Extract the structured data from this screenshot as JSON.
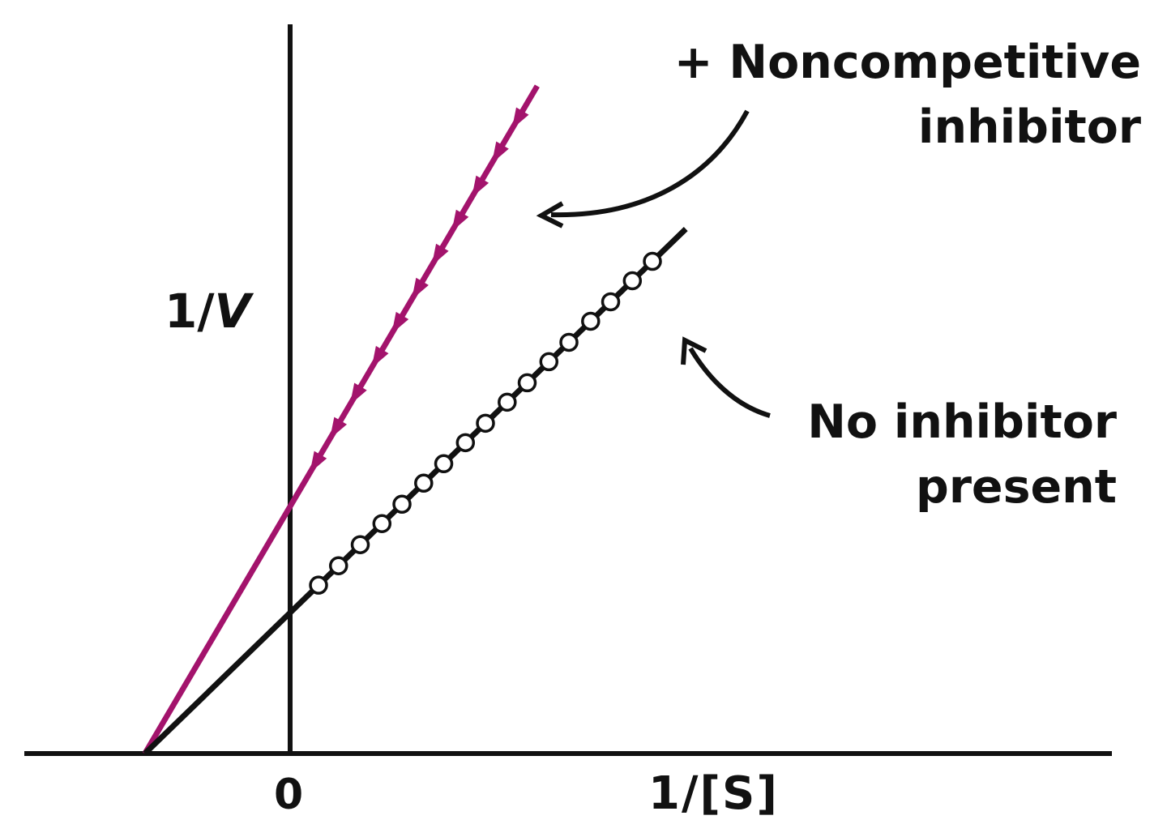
{
  "chart_data": {
    "type": "line",
    "title": "",
    "xlabel": "1/[S]",
    "ylabel": "1/V",
    "x_tick_labels": [
      "0"
    ],
    "xlim": [
      -0.87,
      3.7
    ],
    "ylim": [
      0,
      3.3
    ],
    "grid": false,
    "series": [
      {
        "name": "+ Noncompetitive inhibitor",
        "color": "#a3136c",
        "marker": "arrowhead",
        "x_intercept": -0.87,
        "y_intercept": 1.0,
        "x_end": 1.48,
        "marker_x": [
          0.15,
          0.27,
          0.39,
          0.52,
          0.64,
          0.76,
          0.88,
          1.0,
          1.12,
          1.24,
          1.36
        ]
      },
      {
        "name": "No inhibitor present",
        "color": "#111111",
        "marker": "open-circle",
        "x_intercept": -0.87,
        "y_intercept": 0.57,
        "x_end": 2.37,
        "marker_x": [
          0.17,
          0.29,
          0.42,
          0.55,
          0.67,
          0.8,
          0.92,
          1.05,
          1.17,
          1.3,
          1.42,
          1.55,
          1.67,
          1.8,
          1.92,
          2.05,
          2.17
        ]
      }
    ]
  },
  "labels": {
    "ylabel_main": "1/",
    "ylabel_var": "V",
    "zero": "0",
    "xlabel": "1/[S]",
    "inhibitor_line1": "+ Noncompetitive",
    "inhibitor_line2": "inhibitor",
    "no_inhibitor_line1": "No inhibitor",
    "no_inhibitor_line2": "present"
  }
}
